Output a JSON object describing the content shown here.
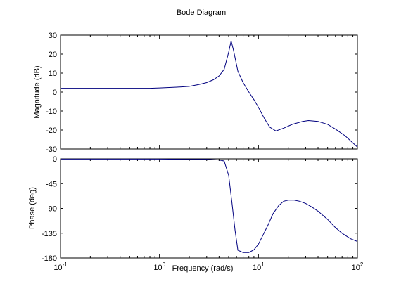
{
  "chart_data": {
    "type": "line",
    "title": "Bode Diagram",
    "xlabel": "Frequency  (rad/s)",
    "xscale": "log",
    "xlim": [
      0.1,
      100
    ],
    "x_tick_bases": [
      "10",
      "10",
      "10",
      "10"
    ],
    "x_tick_exponents": [
      "-1",
      "0",
      "1",
      "2"
    ],
    "line_color": "#00007f",
    "grid": false,
    "panels": [
      {
        "id": "magnitude",
        "ylabel": "Magnitude (dB)",
        "ylim": [
          -30,
          30
        ],
        "yticks": [
          30,
          20,
          10,
          0,
          -10,
          -20,
          -30
        ],
        "ytick_labels": [
          "30",
          "20",
          "10",
          "0",
          "-10",
          "-20",
          "-30"
        ],
        "series": [
          {
            "x": [
              0.1,
              0.2,
              0.5,
              0.8,
              1.0,
              1.5,
              2.0,
              2.5,
              3.0,
              3.5,
              4.0,
              4.5,
              5.0,
              5.3,
              5.6,
              6.2,
              7.0,
              8.0,
              9.0,
              10.0,
              11.5,
              13.0,
              15.0,
              18.0,
              22.0,
              28.0,
              32.0,
              40.0,
              50.0,
              60.0,
              75.0,
              100.0
            ],
            "values": [
              2,
              2,
              2,
              2,
              2.2,
              2.6,
              3,
              4,
              5,
              6.5,
              8.5,
              12,
              21,
              27,
              22,
              11,
              5,
              0,
              -4,
              -8,
              -14,
              -18.5,
              -20.5,
              -19,
              -17,
              -15.5,
              -15,
              -15.5,
              -17,
              -19.5,
              -23,
              -29
            ]
          }
        ]
      },
      {
        "id": "phase",
        "ylabel": "Phase (deg)",
        "ylim": [
          -180,
          0
        ],
        "yticks": [
          0,
          -45,
          -90,
          -135,
          -180
        ],
        "ytick_labels": [
          "0",
          "-45",
          "-90",
          "-135",
          "-180"
        ],
        "series": [
          {
            "x": [
              0.1,
              0.5,
              1.0,
              2.0,
              3.0,
              4.0,
              4.5,
              5.0,
              5.4,
              5.8,
              6.2,
              7.0,
              8.0,
              9.0,
              10.0,
              11.0,
              12.5,
              14.0,
              16.0,
              18.0,
              20.0,
              23.0,
              26.0,
              30.0,
              35.0,
              40.0,
              50.0,
              60.0,
              70.0,
              85.0,
              100.0
            ],
            "values": [
              -0.5,
              -0.5,
              -0.5,
              -1,
              -1,
              -2,
              -4,
              -30,
              -80,
              -130,
              -166,
              -170,
              -170,
              -165,
              -155,
              -140,
              -120,
              -100,
              -85,
              -77,
              -75,
              -75,
              -77,
              -81,
              -88,
              -95,
              -110,
              -125,
              -135,
              -145,
              -150
            ]
          }
        ]
      }
    ]
  }
}
